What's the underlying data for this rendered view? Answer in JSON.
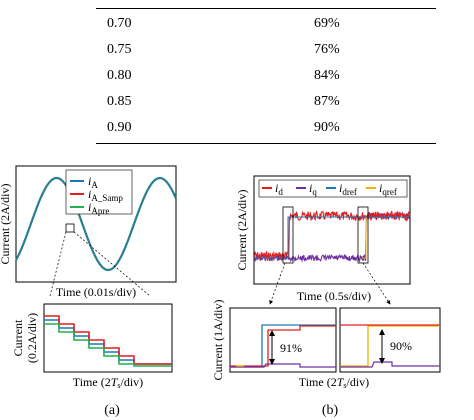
{
  "table": {
    "rows": [
      {
        "a": "0.70",
        "b": "69%"
      },
      {
        "a": "0.75",
        "b": "76%"
      },
      {
        "a": "0.80",
        "b": "84%"
      },
      {
        "a": "0.85",
        "b": "87%"
      },
      {
        "a": "0.90",
        "b": "90%"
      }
    ]
  },
  "figure_a": {
    "legend": [
      {
        "main": "i",
        "sub": "A",
        "color": "#1f77b4"
      },
      {
        "main": "i",
        "sub": "A_Samp",
        "color": "#e02020"
      },
      {
        "main": "i",
        "sub": "Apre",
        "color": "#22b14c"
      }
    ],
    "top_ylabel": "Current (2A/div)",
    "top_xlabel": "Time (0.01s/div)",
    "bottom_ylabel_1": "Current",
    "bottom_ylabel_2": "(0.2A/div)",
    "bottom_xlabel_pre": "Time (2",
    "bottom_xlabel_T": "T",
    "bottom_xlabel_s": "s",
    "bottom_xlabel_post": "/div)",
    "caption": "(a)"
  },
  "figure_b": {
    "legend": [
      {
        "main": "i",
        "sub": "d",
        "color": "#e02020"
      },
      {
        "main": "i",
        "sub": "q",
        "color": "#7030a0"
      },
      {
        "main": "i",
        "sub": "dref",
        "color": "#1f77b4"
      },
      {
        "main": "i",
        "sub": "qref",
        "color": "#f0b000"
      }
    ],
    "top_ylabel": "Current (2A/div)",
    "top_xlabel": "Time (0.5s/div)",
    "bottom_ylabel": "Current (1A/div)",
    "bottom_xlabel_pre": "Time (2",
    "bottom_xlabel_T": "T",
    "bottom_xlabel_s": "s",
    "bottom_xlabel_post": "/div)",
    "annot_left": "91%",
    "annot_right": "90%",
    "caption": "(b)"
  },
  "colors": {
    "blue": "#1f77b4",
    "red": "#e02020",
    "green": "#22b14c",
    "purple": "#7030a0",
    "orange": "#f0b000",
    "teal": "#2a7f8f"
  }
}
